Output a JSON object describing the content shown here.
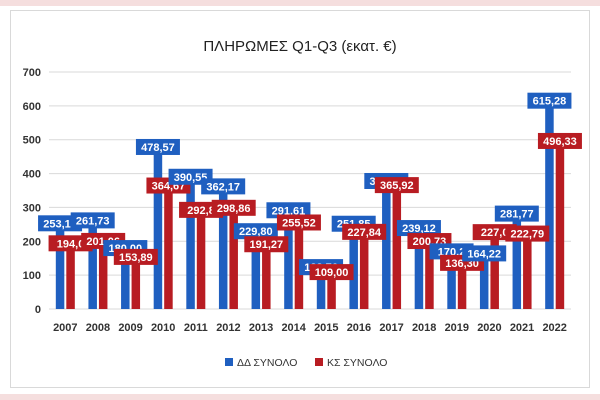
{
  "chart_data": {
    "type": "bar",
    "title": "ΠΛΗΡΩΜΕΣ Q1-Q3 (εκατ. €)",
    "xlabel": "",
    "ylabel": "",
    "categories": [
      "2007",
      "2008",
      "2009",
      "2010",
      "2011",
      "2012",
      "2013",
      "2014",
      "2015",
      "2016",
      "2017",
      "2018",
      "2019",
      "2020",
      "2021",
      "2022"
    ],
    "yticks": [
      "0",
      "100",
      "200",
      "300",
      "400",
      "500",
      "600",
      "700"
    ],
    "ylim": [
      0,
      700
    ],
    "grid": true,
    "legend_position": "bottom",
    "series": [
      {
        "name": "ΔΔ ΣΥΝΟΛΟ",
        "color": "#1f5fc0",
        "values": [
          253.1,
          261.73,
          180.0,
          478.57,
          390.55,
          362.17,
          229.8,
          291.61,
          123.76,
          251.85,
          378.09,
          239.12,
          170.2,
          164.22,
          281.77,
          615.28
        ],
        "labels": [
          "253,10",
          "261,73",
          "180,00",
          "478,57",
          "390,55",
          "362,17",
          "229,80",
          "291,61",
          "123,76",
          "251,85",
          "378,09",
          "239,12",
          "170,2",
          "164,22",
          "281,77",
          "615,28"
        ]
      },
      {
        "name": "ΚΣ ΣΥΝΟΛΟ",
        "color": "#b81c22",
        "values": [
          194.0,
          201.06,
          153.89,
          364.67,
          292.8,
          298.86,
          191.27,
          255.52,
          109.0,
          227.84,
          365.92,
          200.73,
          136.3,
          227.0,
          222.79,
          496.33
        ],
        "labels": [
          "194,0",
          "201,06",
          "153,89",
          "364,67",
          "292,8",
          "298,86",
          "191,27",
          "255,52",
          "109,00",
          "227,84",
          "365,92",
          "200,73",
          "136,30",
          "227,0",
          "222,79",
          "496,33"
        ]
      }
    ]
  }
}
